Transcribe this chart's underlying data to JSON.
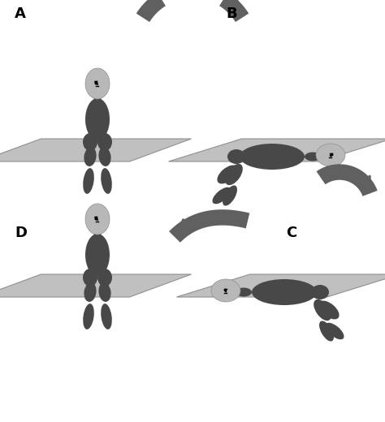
{
  "bg_color": "#ffffff",
  "table_color": "#c0c0c0",
  "body_dark": "#484848",
  "head_color": "#b8b8b8",
  "arrow_color": "#606060",
  "label_color": "#000000",
  "label_fontsize": 13,
  "panels": [
    "A",
    "B",
    "C",
    "D"
  ]
}
